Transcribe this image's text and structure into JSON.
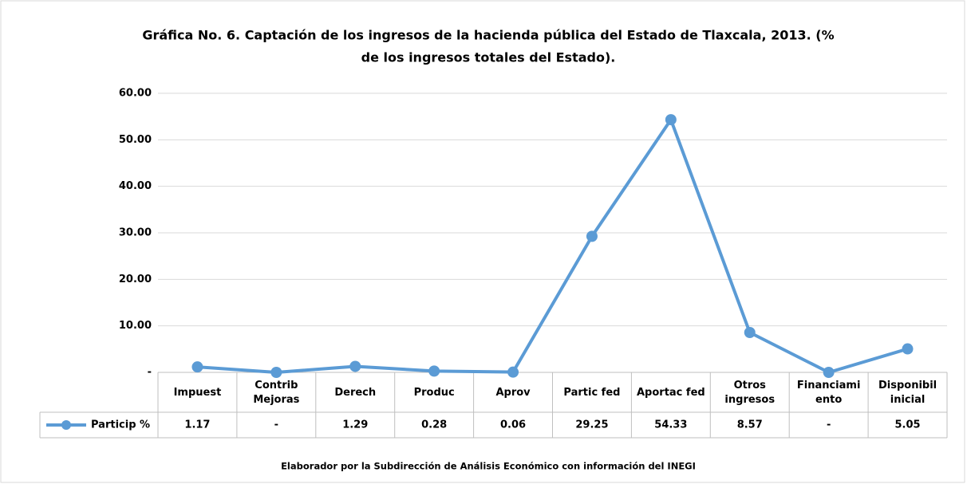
{
  "chart_data": {
    "type": "line",
    "title": "Gráfica No. 6. Captación de los ingresos de la hacienda pública del Estado de  Tlaxcala, 2013. (%",
    "subtitle": "de los ingresos totales del Estado).",
    "categories": [
      "Impuest",
      "Contrib\nMejoras",
      "Derech",
      "Produc",
      "Aprov",
      "Partic fed",
      "Aportac fed",
      "Otros\ningresos",
      "Financiami\nento",
      "Disponibil\ninicial"
    ],
    "series": [
      {
        "name": "Particip %",
        "color": "#5b9bd5",
        "values": [
          1.17,
          0,
          1.29,
          0.28,
          0.06,
          29.25,
          54.33,
          8.57,
          0,
          5.05
        ],
        "value_labels": [
          "1.17",
          "-",
          "1.29",
          "0.28",
          "0.06",
          "29.25",
          "54.33",
          "8.57",
          "-",
          "5.05"
        ]
      }
    ],
    "ylim": [
      0,
      60
    ],
    "yticks": [
      {
        "value": 0,
        "label": "-"
      },
      {
        "value": 10,
        "label": "10.00"
      },
      {
        "value": 20,
        "label": "20.00"
      },
      {
        "value": 30,
        "label": "30.00"
      },
      {
        "value": 40,
        "label": "40.00"
      },
      {
        "value": 50,
        "label": "50.00"
      },
      {
        "value": 60,
        "label": "60.00"
      }
    ],
    "grid": true,
    "source": "Elaborador por la Subdirección de Análisis Económico con información del INEGI"
  }
}
